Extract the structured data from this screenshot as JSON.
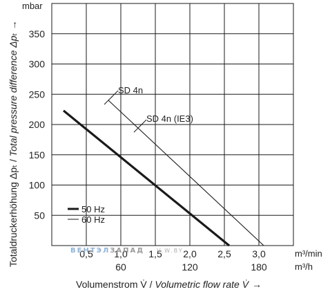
{
  "chart_data": {
    "type": "line",
    "y_unit": "mbar",
    "x_unit_primary": "m³/min",
    "x_unit_secondary": "m³/h",
    "xlim": [
      0,
      3.5
    ],
    "ylim": [
      0,
      400
    ],
    "yticks": [
      50,
      100,
      150,
      200,
      250,
      300,
      350
    ],
    "yticks_text": [
      "50",
      "100",
      "150",
      "200",
      "250",
      "300",
      "350"
    ],
    "xticks_primary": [
      0.5,
      1.0,
      1.5,
      2.0,
      2.5,
      3.0
    ],
    "xticks_primary_text": [
      "0,5",
      "1,0",
      "1,5",
      "2,0",
      "2,5",
      "3,0"
    ],
    "xticks_secondary": [
      1.0,
      2.0,
      3.0
    ],
    "xticks_secondary_text": [
      "60",
      "120",
      "180"
    ],
    "xlabel_plain": "Volumenstrom V̇ / ",
    "xlabel_italic": "Volumetric flow rate V̇",
    "xlabel_arrow": "→",
    "ylabel_plain": "Totaldruckerhöhung Δpₜ / ",
    "ylabel_italic": "Total pressure difference Δpₜ",
    "ylabel_arrow": "→",
    "grid": true,
    "series": [
      {
        "name": "50 Hz",
        "style": "thick",
        "x": [
          0.17,
          2.57
        ],
        "y": [
          223,
          0
        ]
      },
      {
        "name": "60 Hz",
        "style": "thin",
        "x": [
          0.82,
          3.07
        ],
        "y": [
          240,
          0
        ]
      }
    ],
    "curve_labels": [
      {
        "text": "SD 4n",
        "series": 1
      },
      {
        "text": "SD 4n (IE3)",
        "series": 1
      }
    ],
    "legend": {
      "position": "bottom-left",
      "items": [
        "50 Hz",
        "60 Hz"
      ]
    }
  },
  "watermark": {
    "part1": "ВЕНТЭЛ",
    "part2": "ЗАПАД",
    "part3": "V.W.BY"
  },
  "colors": {
    "line": "#1a1a1a",
    "grid": "#1a1a1a",
    "watermark1": "#8fb3d9",
    "watermark2": "#9a9a9a"
  }
}
